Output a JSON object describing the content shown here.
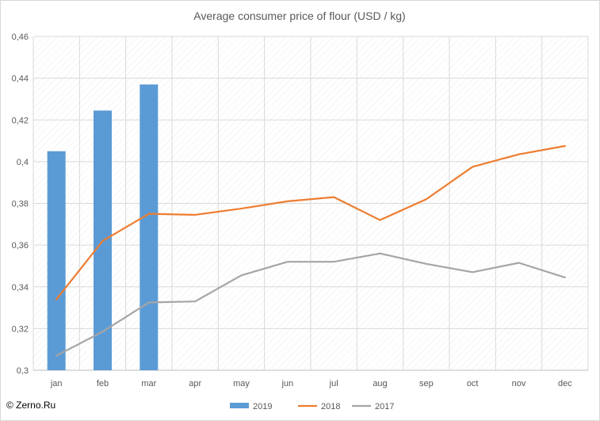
{
  "chart_data": {
    "type": "bar",
    "title": "Average consumer price of flour (USD / kg)",
    "categories": [
      "jan",
      "feb",
      "mar",
      "apr",
      "may",
      "jun",
      "jul",
      "aug",
      "sep",
      "oct",
      "nov",
      "dec"
    ],
    "ylim": [
      0.3,
      0.46
    ],
    "yticks": [
      "0,3",
      "0,32",
      "0,34",
      "0,36",
      "0,38",
      "0,4",
      "0,42",
      "0,44",
      "0,46"
    ],
    "grid": true,
    "legend": "bottom",
    "series": [
      {
        "name": "2019",
        "type": "bar",
        "color": "#5b9bd5",
        "values": [
          0.405,
          0.4245,
          0.437,
          null,
          null,
          null,
          null,
          null,
          null,
          null,
          null,
          null
        ]
      },
      {
        "name": "2018",
        "type": "line",
        "color": "#ed7d31",
        "values": [
          0.334,
          0.362,
          0.375,
          0.3745,
          0.3775,
          0.381,
          0.383,
          0.372,
          0.382,
          0.3975,
          0.4035,
          0.4075
        ]
      },
      {
        "name": "2017",
        "type": "line",
        "color": "#a5a5a5",
        "values": [
          0.307,
          0.3185,
          0.3325,
          0.333,
          0.3455,
          0.352,
          0.352,
          0.356,
          0.351,
          0.347,
          0.3515,
          0.3445
        ]
      }
    ]
  },
  "footer": {
    "copyright": "© Zerno.Ru"
  }
}
